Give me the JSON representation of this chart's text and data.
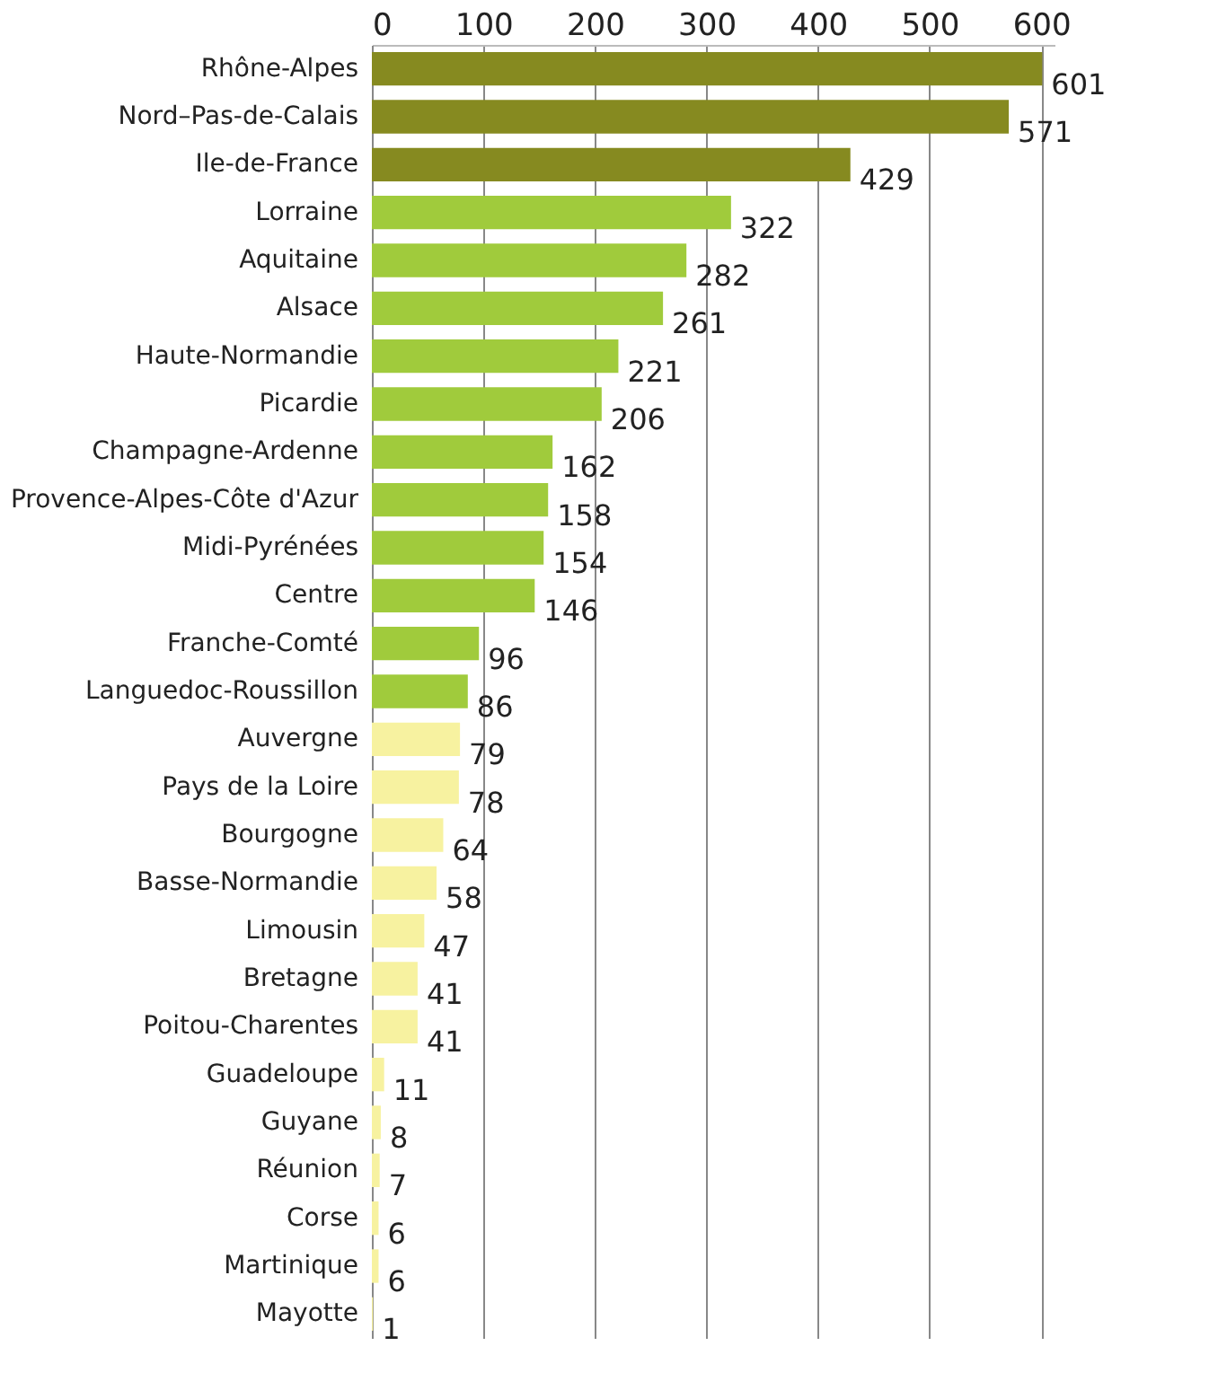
{
  "chart_data": {
    "type": "bar",
    "orientation": "horizontal",
    "categories": [
      "Rhône-Alpes",
      "Nord–Pas-de-Calais",
      "Ile-de-France",
      "Lorraine",
      "Aquitaine",
      "Alsace",
      "Haute-Normandie",
      "Picardie",
      "Champagne-Ardenne",
      "Provence-Alpes-Côte d'Azur",
      "Midi-Pyrénées",
      "Centre",
      "Franche-Comté",
      "Languedoc-Roussillon",
      "Auvergne",
      "Pays de la Loire",
      "Bourgogne",
      "Basse-Normandie",
      "Limousin",
      "Bretagne",
      "Poitou-Charentes",
      "Guadeloupe",
      "Guyane",
      "Réunion",
      "Corse",
      "Martinique",
      "Mayotte"
    ],
    "values": [
      601,
      571,
      429,
      322,
      282,
      261,
      221,
      206,
      162,
      158,
      154,
      146,
      96,
      86,
      79,
      78,
      64,
      58,
      47,
      41,
      41,
      11,
      8,
      7,
      6,
      6,
      1
    ],
    "colors": [
      "#868a20",
      "#868a20",
      "#868a20",
      "#a0cb3c",
      "#a0cb3c",
      "#a0cb3c",
      "#a0cb3c",
      "#a0cb3c",
      "#a0cb3c",
      "#a0cb3c",
      "#a0cb3c",
      "#a0cb3c",
      "#a0cb3c",
      "#a0cb3c",
      "#f7f2a0",
      "#f7f2a0",
      "#f7f2a0",
      "#f7f2a0",
      "#f7f2a0",
      "#f7f2a0",
      "#f7f2a0",
      "#f7f2a0",
      "#f7f2a0",
      "#f7f2a0",
      "#f7f2a0",
      "#f7f2a0",
      "#f7f2a0"
    ],
    "xlim": [
      0,
      612
    ],
    "xticks": [
      0,
      100,
      200,
      300,
      400,
      500,
      600
    ],
    "grid": "x",
    "data_labels": true
  }
}
